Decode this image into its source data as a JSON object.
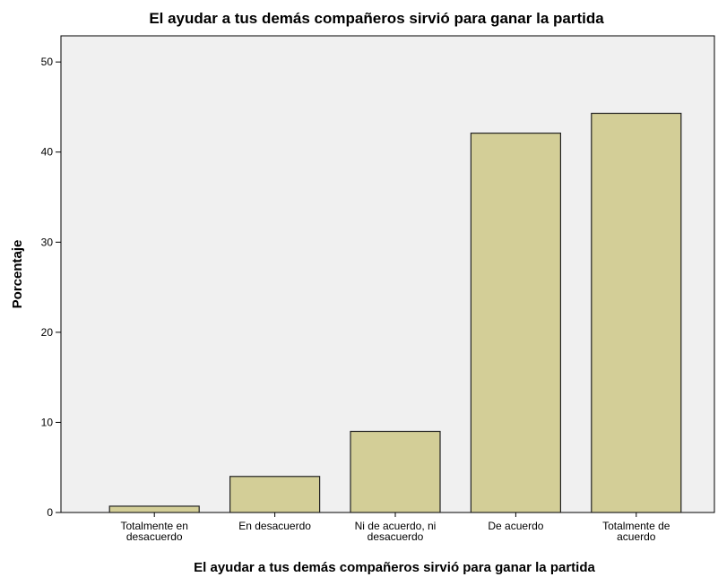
{
  "chart_data": {
    "type": "bar",
    "title": "El ayudar a tus demás compañeros sirvió para ganar la partida",
    "x_label": "El ayudar a tus demás compañeros sirvió para ganar la partida",
    "y_label": "Porcentaje",
    "categories": [
      "Totalmente en desacuerdo",
      "En desacuerdo",
      "Ni de acuerdo, ni desacuerdo",
      "De acuerdo",
      "Totalmente de acuerdo"
    ],
    "values": [
      0.7,
      4.0,
      9.0,
      42.1,
      44.3
    ],
    "color": "#d3ce97",
    "ylim": [
      0,
      52.9
    ],
    "yticks": [
      0,
      10,
      20,
      30,
      40,
      50
    ],
    "grid": false
  }
}
